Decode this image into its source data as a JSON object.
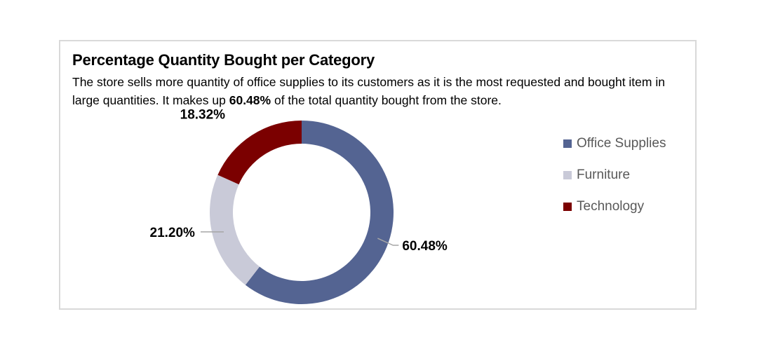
{
  "chart_data": {
    "type": "pie",
    "style": "donut",
    "title": "Percentage Quantity Bought per Category",
    "subtitle": {
      "before": "The store sells more quantity of office supplies to its customers as it is the most requested and bought item in large quantities. It makes up ",
      "bold": "60.48%",
      "after": " of the total quantity bought from the store."
    },
    "slices": [
      {
        "label": "Office Supplies",
        "value": 60.48,
        "display": "60.48%",
        "color": "#546492"
      },
      {
        "label": "Furniture",
        "value": 21.2,
        "display": "21.20%",
        "color": "#c9cad8"
      },
      {
        "label": "Technology",
        "value": 18.32,
        "display": "18.32%",
        "color": "#7b0000"
      }
    ],
    "legend": {
      "position": "right",
      "items": [
        "Office Supplies",
        "Furniture",
        "Technology"
      ]
    },
    "leader_line_color": "#a6a6a6"
  }
}
